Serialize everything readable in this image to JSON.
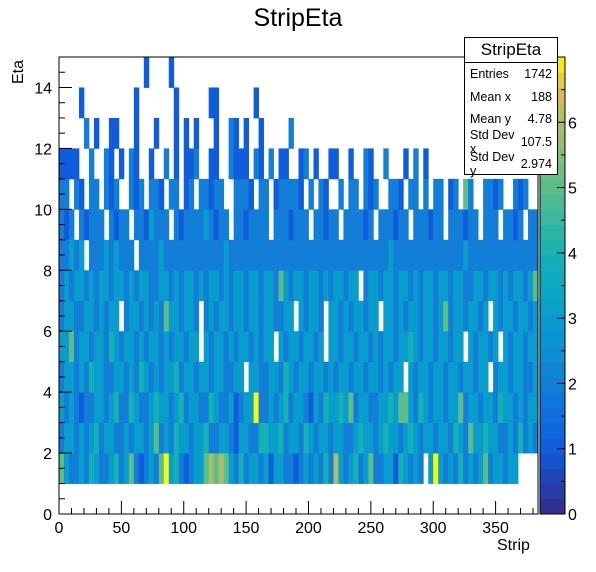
{
  "chart_data": {
    "type": "heatmap",
    "title": "StripEta",
    "xlabel": "Strip",
    "ylabel": "Eta",
    "xlim": [
      0,
      384
    ],
    "ylim": [
      0,
      15
    ],
    "x_ticks": [
      0,
      50,
      100,
      150,
      200,
      250,
      300,
      350
    ],
    "y_ticks": [
      0,
      2,
      4,
      6,
      8,
      10,
      12,
      14
    ],
    "z_range": [
      0,
      7
    ],
    "z_ticks": [
      0,
      1,
      2,
      3,
      4,
      5,
      6
    ],
    "bin_width_x": 4,
    "bin_height_y": 1,
    "eta_bins": [
      1,
      2,
      3,
      4,
      5,
      6,
      7,
      8,
      9,
      10,
      11,
      12,
      13,
      14
    ],
    "counts": [
      [
        5,
        3,
        2,
        2,
        3,
        2,
        4,
        3,
        2,
        2,
        3,
        4,
        2,
        3,
        5,
        2,
        1,
        2,
        3,
        2,
        5,
        7,
        3,
        4,
        2,
        1,
        2,
        3,
        3,
        5,
        6,
        5,
        6,
        5,
        3,
        2,
        4,
        2,
        3,
        3,
        2,
        3,
        1,
        3,
        3,
        2,
        2,
        1,
        2,
        3,
        2,
        3,
        2,
        4,
        2,
        6,
        3,
        2,
        3,
        4,
        2,
        3,
        5,
        2,
        2,
        3,
        3,
        1,
        4,
        3,
        2,
        3,
        2,
        0,
        3,
        7,
        3,
        2,
        3,
        2,
        4,
        2,
        3,
        2,
        3,
        5,
        2,
        3,
        3,
        2,
        3,
        3,
        0,
        0,
        0,
        0
      ],
      [
        2,
        3,
        3,
        2,
        3,
        2,
        3,
        4,
        2,
        3,
        3,
        2,
        2,
        3,
        2,
        3,
        3,
        2,
        3,
        5,
        2,
        3,
        2,
        4,
        3,
        3,
        2,
        3,
        3,
        4,
        2,
        2,
        3,
        3,
        2,
        1,
        3,
        3,
        2,
        2,
        4,
        4,
        3,
        3,
        4,
        2,
        3,
        3,
        2,
        4,
        3,
        2,
        3,
        3,
        2,
        3,
        3,
        2,
        2,
        3,
        4,
        3,
        3,
        2,
        3,
        4,
        3,
        3,
        2,
        3,
        4,
        3,
        2,
        3,
        3,
        2,
        3,
        3,
        2,
        4,
        3,
        2,
        5,
        3,
        3,
        4,
        3,
        3,
        2,
        2,
        3,
        2,
        4,
        2,
        3,
        2
      ],
      [
        3,
        2,
        3,
        2,
        1,
        2,
        2,
        3,
        3,
        2,
        3,
        4,
        2,
        2,
        4,
        3,
        2,
        2,
        3,
        4,
        3,
        3,
        2,
        3,
        4,
        2,
        3,
        3,
        2,
        2,
        4,
        3,
        2,
        2,
        3,
        1,
        2,
        3,
        3,
        7,
        2,
        2,
        3,
        2,
        3,
        4,
        2,
        3,
        3,
        2,
        1,
        3,
        2,
        4,
        3,
        3,
        4,
        3,
        5,
        2,
        3,
        3,
        2,
        2,
        3,
        3,
        4,
        3,
        5,
        5,
        3,
        2,
        4,
        3,
        2,
        3,
        3,
        2,
        3,
        3,
        5,
        2,
        3,
        3,
        2,
        3,
        3,
        2,
        4,
        3,
        3,
        2,
        3,
        2,
        3,
        3
      ],
      [
        2,
        3,
        3,
        2,
        3,
        2,
        4,
        3,
        3,
        2,
        2,
        3,
        3,
        2,
        3,
        2,
        4,
        3,
        2,
        3,
        2,
        3,
        3,
        4,
        2,
        3,
        3,
        2,
        3,
        3,
        2,
        3,
        3,
        2,
        2,
        3,
        3,
        0,
        3,
        3,
        2,
        2,
        3,
        3,
        2,
        4,
        3,
        2,
        3,
        3,
        2,
        3,
        3,
        2,
        3,
        2,
        3,
        3,
        2,
        3,
        3,
        2,
        3,
        3,
        2,
        3,
        2,
        3,
        3,
        0,
        3,
        2,
        3,
        3,
        2,
        3,
        3,
        2,
        3,
        3,
        2,
        3,
        3,
        2,
        3,
        3,
        0,
        2,
        3,
        3,
        2,
        3,
        3,
        2,
        2,
        3
      ],
      [
        3,
        3,
        5,
        2,
        3,
        3,
        2,
        3,
        3,
        2,
        4,
        3,
        2,
        3,
        3,
        2,
        3,
        2,
        3,
        3,
        2,
        3,
        2,
        3,
        3,
        2,
        3,
        3,
        0,
        3,
        2,
        3,
        3,
        2,
        3,
        2,
        3,
        3,
        2,
        3,
        2,
        3,
        3,
        0,
        3,
        2,
        3,
        3,
        2,
        3,
        3,
        2,
        3,
        0,
        3,
        3,
        2,
        3,
        3,
        2,
        3,
        3,
        2,
        3,
        2,
        3,
        3,
        2,
        3,
        3,
        4,
        3,
        2,
        3,
        3,
        2,
        3,
        3,
        2,
        3,
        3,
        0,
        3,
        2,
        3,
        3,
        2,
        3,
        0,
        3,
        2,
        3,
        3,
        2,
        3,
        3
      ],
      [
        2,
        3,
        3,
        2,
        2,
        3,
        3,
        2,
        3,
        2,
        3,
        3,
        0,
        2,
        3,
        3,
        2,
        3,
        2,
        3,
        2,
        5,
        3,
        3,
        2,
        3,
        3,
        2,
        0,
        2,
        3,
        2,
        3,
        3,
        2,
        3,
        3,
        2,
        3,
        3,
        2,
        3,
        3,
        2,
        2,
        3,
        3,
        0,
        3,
        2,
        3,
        3,
        2,
        0,
        3,
        3,
        2,
        3,
        2,
        3,
        3,
        2,
        3,
        3,
        0,
        3,
        3,
        2,
        3,
        2,
        3,
        3,
        2,
        3,
        3,
        2,
        3,
        5,
        2,
        3,
        3,
        2,
        3,
        3,
        2,
        3,
        0,
        3,
        2,
        3,
        3,
        2,
        3,
        3,
        2,
        3
      ],
      [
        2,
        3,
        2,
        3,
        3,
        2,
        3,
        2,
        3,
        3,
        2,
        3,
        3,
        2,
        3,
        2,
        3,
        3,
        2,
        2,
        3,
        3,
        2,
        3,
        2,
        3,
        3,
        2,
        3,
        2,
        3,
        3,
        2,
        3,
        2,
        3,
        3,
        2,
        3,
        3,
        2,
        3,
        3,
        2,
        5,
        3,
        2,
        3,
        3,
        2,
        3,
        3,
        2,
        3,
        2,
        3,
        3,
        2,
        3,
        3,
        0,
        2,
        3,
        3,
        2,
        3,
        3,
        2,
        3,
        3,
        2,
        3,
        2,
        3,
        3,
        2,
        3,
        3,
        2,
        3,
        3,
        2,
        2,
        3,
        3,
        2,
        3,
        3,
        2,
        3,
        2,
        3,
        3,
        2,
        3,
        5
      ],
      [
        2,
        2,
        3,
        2,
        3,
        0,
        2,
        2,
        2,
        3,
        2,
        3,
        2,
        2,
        2,
        0,
        2,
        2,
        2,
        2,
        3,
        2,
        2,
        2,
        2,
        2,
        2,
        2,
        2,
        2,
        2,
        2,
        2,
        3,
        2,
        2,
        2,
        2,
        2,
        2,
        2,
        2,
        2,
        2,
        2,
        2,
        2,
        2,
        2,
        2,
        2,
        2,
        2,
        2,
        2,
        2,
        2,
        2,
        2,
        2,
        2,
        2,
        2,
        2,
        2,
        2,
        3,
        2,
        2,
        2,
        2,
        2,
        2,
        2,
        2,
        2,
        2,
        2,
        2,
        2,
        2,
        3,
        2,
        2,
        2,
        2,
        2,
        2,
        2,
        2,
        2,
        2,
        2,
        2,
        2,
        2
      ],
      [
        2,
        1,
        2,
        0,
        2,
        1,
        2,
        2,
        2,
        0,
        2,
        1,
        2,
        2,
        0,
        2,
        2,
        1,
        3,
        2,
        2,
        2,
        0,
        2,
        1,
        2,
        2,
        2,
        2,
        3,
        2,
        1,
        2,
        2,
        0,
        2,
        2,
        1,
        2,
        2,
        2,
        2,
        0,
        2,
        2,
        2,
        1,
        2,
        2,
        2,
        0,
        2,
        2,
        1,
        2,
        2,
        0,
        2,
        2,
        2,
        2,
        1,
        2,
        0,
        2,
        2,
        2,
        1,
        2,
        2,
        0,
        2,
        2,
        2,
        1,
        2,
        2,
        0,
        2,
        2,
        2,
        1,
        2,
        2,
        0,
        2,
        2,
        2,
        0,
        2,
        2,
        1,
        2,
        0,
        2,
        2
      ],
      [
        2,
        2,
        0,
        2,
        1,
        0,
        2,
        2,
        0,
        2,
        1,
        2,
        0,
        0,
        2,
        1,
        2,
        0,
        2,
        2,
        1,
        0,
        2,
        2,
        0,
        1,
        2,
        0,
        2,
        2,
        1,
        2,
        2,
        0,
        0,
        2,
        2,
        2,
        1,
        0,
        2,
        2,
        0,
        1,
        2,
        2,
        2,
        2,
        1,
        0,
        2,
        0,
        2,
        1,
        0,
        0,
        2,
        0,
        2,
        2,
        0,
        2,
        1,
        2,
        0,
        0,
        2,
        2,
        1,
        0,
        2,
        2,
        0,
        2,
        0,
        2,
        2,
        0,
        1,
        2,
        0,
        5,
        2,
        0,
        0,
        2,
        2,
        1,
        2,
        0,
        0,
        2,
        1,
        2,
        0,
        0
      ],
      [
        1,
        1,
        1,
        1,
        0,
        0,
        2,
        0,
        0,
        2,
        1,
        0,
        1,
        0,
        2,
        1,
        0,
        0,
        1,
        0,
        0,
        2,
        0,
        1,
        0,
        1,
        1,
        2,
        0,
        0,
        1,
        1,
        0,
        0,
        2,
        1,
        1,
        1,
        0,
        2,
        1,
        0,
        2,
        0,
        1,
        1,
        0,
        0,
        1,
        2,
        0,
        1,
        0,
        0,
        1,
        1,
        0,
        0,
        1,
        0,
        0,
        2,
        1,
        0,
        0,
        2,
        0,
        0,
        0,
        1,
        0,
        2,
        0,
        1,
        0,
        0,
        0,
        0,
        0,
        0,
        0,
        0,
        0,
        0,
        0,
        0,
        0,
        0,
        0,
        0,
        0,
        0,
        0,
        0,
        0,
        0
      ],
      [
        0,
        0,
        0,
        0,
        0,
        2,
        0,
        1,
        0,
        0,
        1,
        1,
        0,
        0,
        0,
        1,
        0,
        0,
        0,
        1,
        0,
        0,
        0,
        1,
        0,
        1,
        0,
        1,
        0,
        0,
        0,
        1,
        0,
        0,
        2,
        1,
        0,
        1,
        0,
        0,
        1,
        0,
        0,
        0,
        0,
        0,
        2,
        0,
        0,
        0,
        0,
        0,
        0,
        0,
        0,
        0,
        0,
        0,
        0,
        0,
        0,
        0,
        0,
        0,
        0,
        0,
        0,
        0,
        0,
        0,
        0,
        0,
        0,
        0,
        0,
        0,
        0,
        0,
        0,
        0,
        0,
        0,
        0,
        0,
        0,
        0,
        0,
        0,
        0,
        0,
        0,
        0,
        0,
        0,
        0,
        0
      ],
      [
        0,
        0,
        0,
        0,
        1,
        0,
        0,
        0,
        0,
        0,
        0,
        0,
        0,
        0,
        0,
        1,
        0,
        0,
        0,
        0,
        0,
        0,
        0,
        1,
        0,
        0,
        0,
        0,
        0,
        0,
        1,
        1,
        0,
        0,
        0,
        0,
        0,
        0,
        0,
        1,
        0,
        0,
        0,
        0,
        0,
        0,
        0,
        0,
        0,
        0,
        0,
        0,
        0,
        0,
        0,
        0,
        0,
        0,
        0,
        0,
        0,
        0,
        0,
        0,
        0,
        0,
        0,
        0,
        0,
        0,
        0,
        0,
        0,
        0,
        0,
        0,
        0,
        0,
        0,
        0,
        0,
        0,
        0,
        0,
        0,
        0,
        0,
        0,
        0,
        0,
        0,
        0,
        0,
        0,
        0,
        0
      ],
      [
        0,
        0,
        0,
        0,
        0,
        0,
        0,
        0,
        0,
        0,
        0,
        0,
        0,
        0,
        0,
        0,
        0,
        1,
        0,
        0,
        0,
        0,
        1,
        0,
        0,
        0,
        0,
        0,
        0,
        0,
        0,
        0,
        0,
        0,
        0,
        0,
        0,
        0,
        0,
        0,
        0,
        0,
        0,
        0,
        0,
        0,
        0,
        0,
        0,
        0,
        0,
        0,
        0,
        0,
        0,
        0,
        0,
        0,
        0,
        0,
        0,
        0,
        0,
        0,
        0,
        0,
        0,
        0,
        0,
        0,
        0,
        0,
        0,
        0,
        0,
        0,
        0,
        0,
        0,
        0,
        0,
        0,
        0,
        0,
        0,
        0,
        0,
        0,
        0,
        0,
        0,
        0,
        0,
        0,
        0,
        0
      ]
    ]
  },
  "stats_box": {
    "title": "StripEta",
    "rows": [
      {
        "label": "Entries",
        "value": "1742"
      },
      {
        "label": "Mean x",
        "value": "188"
      },
      {
        "label": "Mean y",
        "value": "4.78"
      },
      {
        "label": "Std Dev x",
        "value": "107.5"
      },
      {
        "label": "Std Dev y",
        "value": "2.974"
      }
    ]
  }
}
